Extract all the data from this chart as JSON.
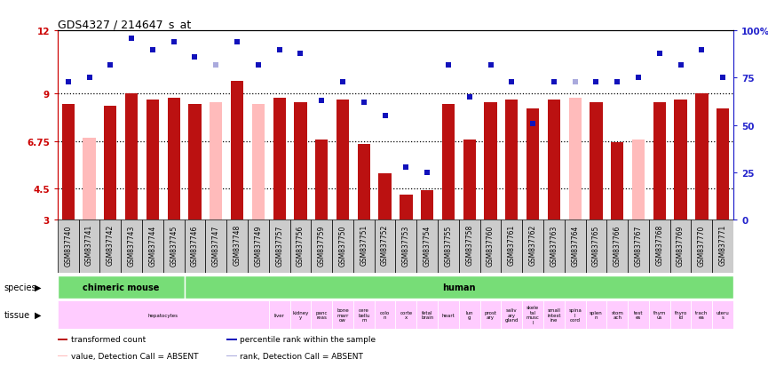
{
  "title": "GDS4327 / 214647_s_at",
  "samples": [
    "GSM837740",
    "GSM837741",
    "GSM837742",
    "GSM837743",
    "GSM837744",
    "GSM837745",
    "GSM837746",
    "GSM837747",
    "GSM837748",
    "GSM837749",
    "GSM837757",
    "GSM837756",
    "GSM837759",
    "GSM837750",
    "GSM837751",
    "GSM837752",
    "GSM837753",
    "GSM837754",
    "GSM837755",
    "GSM837758",
    "GSM837760",
    "GSM837761",
    "GSM837762",
    "GSM837763",
    "GSM837764",
    "GSM837765",
    "GSM837766",
    "GSM837767",
    "GSM837768",
    "GSM837769",
    "GSM837770",
    "GSM837771"
  ],
  "values": [
    8.5,
    6.9,
    8.4,
    9.0,
    8.7,
    8.8,
    8.5,
    8.6,
    9.6,
    8.5,
    8.8,
    8.6,
    6.8,
    8.7,
    6.6,
    5.2,
    4.2,
    4.4,
    8.5,
    6.8,
    8.6,
    8.7,
    8.3,
    8.7,
    8.8,
    8.6,
    6.7,
    6.8,
    8.6,
    8.7,
    9.0,
    8.3
  ],
  "ranks": [
    73,
    75,
    82,
    96,
    90,
    94,
    86,
    82,
    94,
    82,
    90,
    88,
    63,
    73,
    62,
    55,
    28,
    25,
    82,
    65,
    82,
    73,
    51,
    73,
    73,
    73,
    73,
    75,
    88,
    82,
    90,
    75
  ],
  "absent": [
    false,
    true,
    false,
    false,
    false,
    false,
    false,
    true,
    false,
    true,
    false,
    false,
    false,
    false,
    false,
    false,
    false,
    false,
    false,
    false,
    false,
    false,
    false,
    false,
    true,
    false,
    false,
    true,
    false,
    false,
    false,
    false
  ],
  "rank_absent": [
    false,
    false,
    false,
    false,
    false,
    false,
    false,
    true,
    false,
    false,
    false,
    false,
    false,
    false,
    false,
    false,
    false,
    false,
    false,
    false,
    false,
    false,
    false,
    false,
    true,
    false,
    false,
    false,
    false,
    false,
    false,
    false
  ],
  "ymin": 3,
  "ymax": 12,
  "yticks": [
    3,
    4.5,
    6.75,
    9,
    12
  ],
  "ytick_labels": [
    "3",
    "4.5",
    "6.75",
    "9",
    "12"
  ],
  "right_yticks": [
    0,
    25,
    50,
    75,
    100
  ],
  "right_ytick_labels": [
    "0",
    "25",
    "50",
    "75",
    "100%"
  ],
  "bar_color": "#bb1111",
  "bar_absent_color": "#ffbbbb",
  "rank_color": "#1111bb",
  "rank_absent_color": "#aaaadd",
  "bg_color": "#ffffff",
  "species_groups": [
    {
      "label": "chimeric mouse",
      "start": 0,
      "end": 6,
      "color": "#77dd77"
    },
    {
      "label": "human",
      "start": 6,
      "end": 32,
      "color": "#77dd77"
    }
  ],
  "tissue_groups": [
    {
      "label": "hepatocytes",
      "start": 0,
      "end": 10
    },
    {
      "label": "liver",
      "start": 10,
      "end": 11
    },
    {
      "label": "kidney\ny",
      "start": 11,
      "end": 12
    },
    {
      "label": "panc\nreas",
      "start": 12,
      "end": 13
    },
    {
      "label": "bone\nmarr\now",
      "start": 13,
      "end": 14
    },
    {
      "label": "cere\nbellu\nm",
      "start": 14,
      "end": 15
    },
    {
      "label": "colo\nn",
      "start": 15,
      "end": 16
    },
    {
      "label": "corte\nx",
      "start": 16,
      "end": 17
    },
    {
      "label": "fetal\nbrain",
      "start": 17,
      "end": 18
    },
    {
      "label": "heart",
      "start": 18,
      "end": 19
    },
    {
      "label": "lun\ng",
      "start": 19,
      "end": 20
    },
    {
      "label": "prost\nary",
      "start": 20,
      "end": 21
    },
    {
      "label": "saliv\nary\ngland",
      "start": 21,
      "end": 22
    },
    {
      "label": "skele\ntal\nmusc\nl",
      "start": 22,
      "end": 23
    },
    {
      "label": "small\nintest\nine",
      "start": 23,
      "end": 24
    },
    {
      "label": "spina\nl\ncord",
      "start": 24,
      "end": 25
    },
    {
      "label": "splen\nn",
      "start": 25,
      "end": 26
    },
    {
      "label": "stom\nach",
      "start": 26,
      "end": 27
    },
    {
      "label": "test\nes",
      "start": 27,
      "end": 28
    },
    {
      "label": "thym\nus",
      "start": 28,
      "end": 29
    },
    {
      "label": "thyro\nid",
      "start": 29,
      "end": 30
    },
    {
      "label": "trach\nea",
      "start": 30,
      "end": 31
    },
    {
      "label": "uteru\ns",
      "start": 31,
      "end": 32
    }
  ],
  "legend_items": [
    {
      "color": "#bb1111",
      "label": "transformed count"
    },
    {
      "color": "#1111bb",
      "label": "percentile rank within the sample"
    },
    {
      "color": "#ffbbbb",
      "label": "value, Detection Call = ABSENT"
    },
    {
      "color": "#aaaadd",
      "label": "rank, Detection Call = ABSENT"
    }
  ]
}
